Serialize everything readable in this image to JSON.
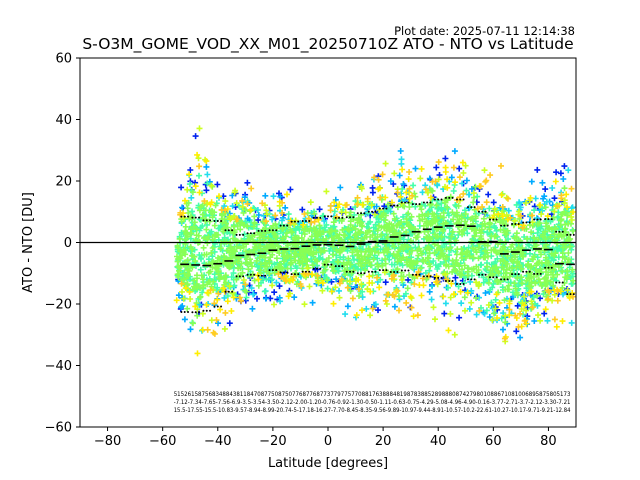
{
  "chart_data": {
    "type": "scatter",
    "title": "S-O3M_GOME_VOD_XX_M01_20250710Z ATO - NTO vs Latitude",
    "plot_date": "Plot date: 2025-07-11 12:14:38",
    "xlabel": "Latitude [degrees]",
    "ylabel": "ATO - NTO [DU]",
    "xlim": [
      -90,
      90
    ],
    "ylim": [
      -60,
      60
    ],
    "xticks": [
      -80,
      -60,
      -40,
      -20,
      0,
      20,
      40,
      60,
      80
    ],
    "yticks": [
      -60,
      -40,
      -20,
      0,
      20,
      40,
      60
    ],
    "xtick_labels": [
      "−80",
      "−60",
      "−40",
      "−20",
      "0",
      "20",
      "40",
      "60",
      "80"
    ],
    "ytick_labels": [
      "−60",
      "−40",
      "−20",
      "0",
      "20",
      "40",
      "60"
    ],
    "grid": false,
    "zero_line": 0,
    "scatter_colors": [
      "#0022ee",
      "#00aaff",
      "#22ddee",
      "#44ffaa",
      "#88ff55",
      "#ccff22",
      "#ffee00",
      "#ffcc22"
    ],
    "scatter_envelope": {
      "lat": [
        -55,
        -52,
        -49,
        -46,
        -43,
        -40,
        -37,
        -34,
        -31,
        -28,
        -25,
        -22,
        -19,
        -16,
        -13,
        -10,
        -7,
        -4,
        -1,
        2,
        5,
        8,
        11,
        14,
        17,
        20,
        23,
        26,
        29,
        32,
        35,
        38,
        41,
        44,
        47,
        50,
        53,
        56,
        59,
        62,
        65,
        68,
        71,
        74,
        77,
        80,
        83,
        86,
        89
      ],
      "upper": [
        10,
        30,
        40,
        42,
        38,
        30,
        28,
        25,
        25,
        24,
        22,
        22,
        22,
        20,
        20,
        18,
        18,
        20,
        20,
        24,
        26,
        28,
        30,
        26,
        26,
        30,
        28,
        32,
        34,
        32,
        34,
        36,
        38,
        36,
        34,
        32,
        34,
        32,
        30,
        32,
        28,
        26,
        24,
        26,
        28,
        26,
        32,
        36,
        20
      ],
      "lower": [
        -20,
        -35,
        -45,
        -48,
        -40,
        -38,
        -34,
        -32,
        -30,
        -28,
        -26,
        -26,
        -26,
        -24,
        -24,
        -22,
        -20,
        -22,
        -24,
        -26,
        -28,
        -30,
        -30,
        -28,
        -30,
        -28,
        -28,
        -30,
        -30,
        -28,
        -30,
        -32,
        -34,
        -32,
        -32,
        -34,
        -34,
        -36,
        -38,
        -40,
        -40,
        -38,
        -36,
        -34,
        -34,
        -34,
        -36,
        -36,
        -30
      ]
    },
    "median_bins": {
      "lat": [
        -52,
        -48,
        -44,
        -40,
        -36,
        -32,
        -28,
        -24,
        -20,
        -16,
        -12,
        -8,
        -4,
        0,
        4,
        8,
        12,
        16,
        20,
        24,
        28,
        32,
        36,
        40,
        44,
        48,
        52,
        56,
        60,
        64,
        68,
        72,
        76,
        80,
        84,
        88
      ],
      "value": [
        -7.1,
        -7.3,
        -7.5,
        -6.9,
        -6.0,
        -4.2,
        -3.9,
        -3.5,
        -2.5,
        -2.1,
        -2.0,
        -1.2,
        -0.8,
        -0.7,
        -0.9,
        -1.3,
        -0.5,
        0.3,
        0.5,
        1.8,
        2.3,
        3.5,
        4.3,
        5.0,
        5.4,
        5.6,
        5.3,
        0.2,
        0.3,
        -3.7,
        -3.1,
        -2.5,
        -2.1,
        -2.3,
        -6.9,
        -7.1
      ]
    },
    "std_upper": {
      "lat": [
        -52,
        -48,
        -44,
        -40,
        -36,
        -32,
        -28,
        -24,
        -20,
        -16,
        -12,
        -8,
        -4,
        0,
        4,
        8,
        12,
        16,
        20,
        24,
        28,
        32,
        36,
        40,
        44,
        48,
        52,
        56,
        60,
        64,
        68,
        72,
        76,
        80,
        84,
        88
      ],
      "value": [
        8.4,
        8.1,
        7.2,
        7.0,
        4.0,
        2.5,
        3.0,
        3.8,
        4.0,
        5.5,
        6.8,
        7.0,
        8.0,
        8.5,
        8.0,
        8.2,
        9.5,
        10.0,
        11.0,
        12.0,
        13.0,
        12.5,
        13.0,
        14.0,
        14.5,
        14.0,
        11.5,
        10.0,
        7.5,
        5.5,
        6.0,
        6.5,
        7.5,
        7.6,
        3.5,
        2.5
      ]
    },
    "std_lower": {
      "lat": [
        -52,
        -48,
        -44,
        -40,
        -36,
        -32,
        -28,
        -24,
        -20,
        -16,
        -12,
        -8,
        -4,
        0,
        4,
        8,
        12,
        16,
        20,
        24,
        28,
        32,
        36,
        40,
        44,
        48,
        52,
        56,
        60,
        64,
        68,
        72,
        76,
        80,
        84,
        88
      ],
      "value": [
        -22.6,
        -22.7,
        -22.2,
        -20.8,
        -16.0,
        -11.0,
        -10.5,
        -10.8,
        -9.0,
        -9.7,
        -10.3,
        -9.5,
        -8.5,
        -7.2,
        -7.7,
        -9.5,
        -10.0,
        -9.5,
        -9.0,
        -9.6,
        -9.1,
        -10.5,
        -11.0,
        -11.5,
        -12.5,
        -13.5,
        -12.0,
        -10.5,
        -11.3,
        -12.0,
        -10.3,
        -9.5,
        -10.2,
        -8.2,
        -13.0,
        -16.8
      ]
    }
  },
  "stats_rows": {
    "counts": "515261587568348843811847087750875077687768773779775770881763888481987838852898880874279801088671081006895875805173",
    "medians": "-7.12-7.34-7.65-7.56-6.9-3.5-3.54-3.50-2.12-2.00-1.20-0.76-0.92-1.30-0.50-1.11-0.63-0.75-4.29-5.08-4.96-4.90-0.16-3.77-2.71-3.7-2.12-3.30-7.21",
    "stds": "15.5-17.55-15.5-10.83-9.57-8.94-8.99-20.74-5-17.18-16.27-7.70-8.45-8.35-9.56-9.89-10.97-9.44-8.91-10.57-10.2-22.61-10.27-10.17-9.71-9.21-12.84"
  }
}
